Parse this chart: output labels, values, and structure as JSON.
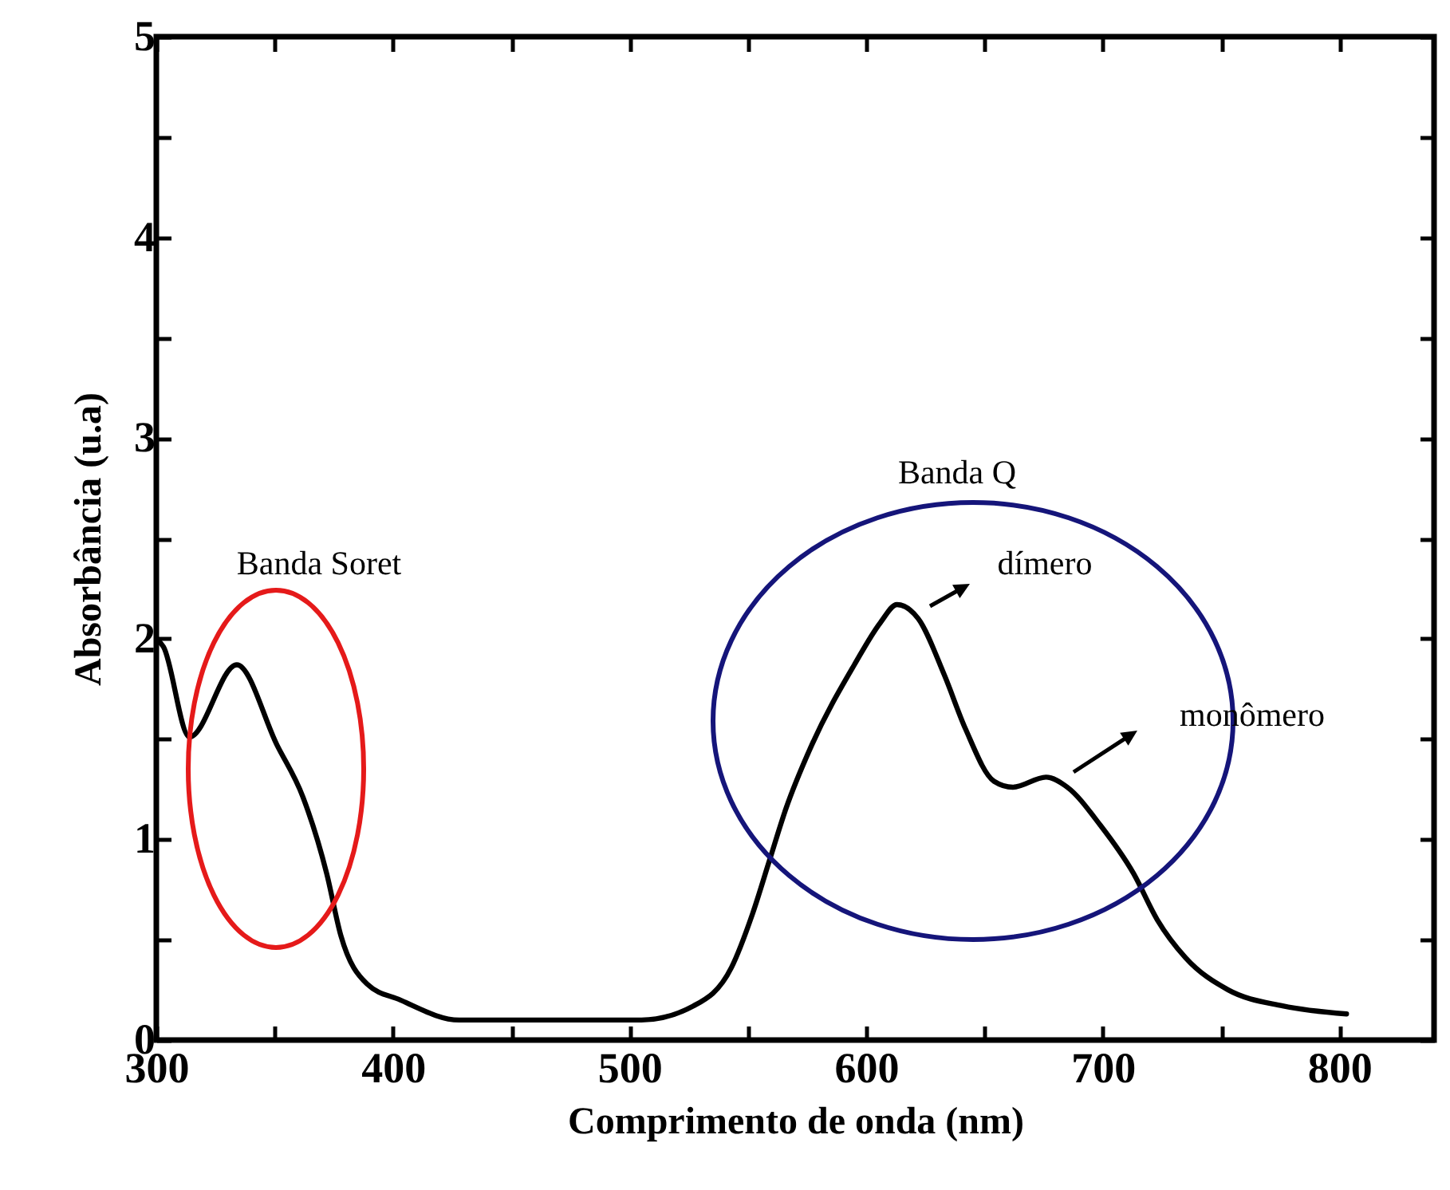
{
  "chart_data": {
    "type": "line",
    "xlabel": "Comprimento de onda (nm)",
    "ylabel": "Absorbância (u.a)",
    "xlim": [
      300,
      840
    ],
    "ylim": [
      0,
      5
    ],
    "xticks": [
      300,
      {
        "value": 350,
        "label": null
      },
      400,
      {
        "value": 450,
        "label": null
      },
      500,
      {
        "value": 550,
        "label": null
      },
      600,
      {
        "value": 650,
        "label": null
      },
      700,
      {
        "value": 750,
        "label": null
      },
      800
    ],
    "yticks": [
      0,
      {
        "value": 0.5,
        "label": null
      },
      1,
      {
        "value": 1.5,
        "label": null
      },
      2,
      {
        "value": 2.5,
        "label": null
      },
      3,
      {
        "value": 3.5,
        "label": null
      },
      4,
      {
        "value": 4.5,
        "label": null
      },
      5
    ],
    "marker": "none",
    "line_style": "solid",
    "annotations": [
      "Banda Soret",
      "Banda Q",
      "dímero",
      "monômero"
    ],
    "series": [
      {
        "color": "#000000",
        "x": [
          300,
          303,
          314,
          334,
          351,
          362,
          372,
          378,
          389,
          403,
          428,
          460,
          505,
          527,
          543,
          552,
          559,
          566,
          577,
          595,
          606,
          613,
          622,
          633,
          642,
          654,
          662,
          676,
          685,
          699,
          713,
          723,
          735,
          753,
          776,
          803
        ],
        "values": [
          2.0,
          1.96,
          1.51,
          1.87,
          1.47,
          1.21,
          0.83,
          0.52,
          0.28,
          0.2,
          0.1,
          0.1,
          0.1,
          0.17,
          0.36,
          0.63,
          0.89,
          1.15,
          1.47,
          1.87,
          2.08,
          2.17,
          2.1,
          1.82,
          1.55,
          1.29,
          1.26,
          1.31,
          1.26,
          1.07,
          0.83,
          0.6,
          0.41,
          0.25,
          0.17,
          0.13
        ]
      }
    ]
  }
}
